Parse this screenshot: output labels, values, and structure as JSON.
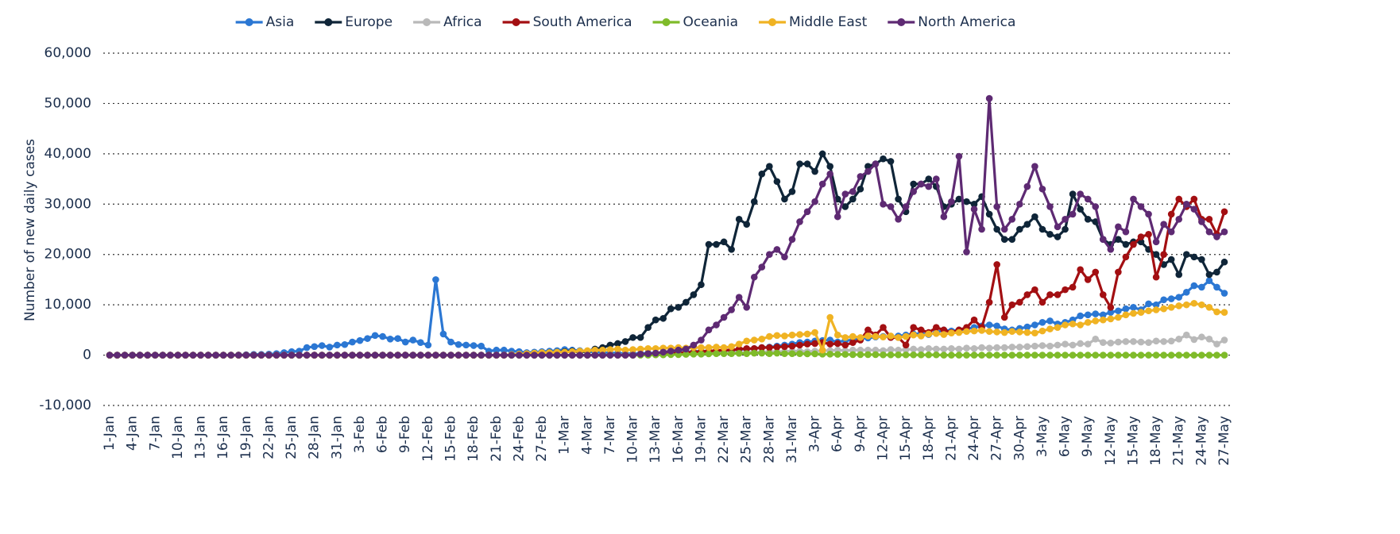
{
  "chart_data": {
    "type": "line",
    "ylabel": "Number of new daily cases",
    "categories": [
      "1-Jan",
      null,
      null,
      "4-Jan",
      null,
      null,
      "7-Jan",
      null,
      null,
      "10-Jan",
      null,
      null,
      "13-Jan",
      null,
      null,
      "16-Jan",
      null,
      null,
      "19-Jan",
      null,
      null,
      "22-Jan",
      null,
      null,
      "25-Jan",
      null,
      null,
      "28-Jan",
      null,
      null,
      "31-Jan",
      null,
      null,
      "3-Feb",
      null,
      null,
      "6-Feb",
      null,
      null,
      "9-Feb",
      null,
      null,
      "12-Feb",
      null,
      null,
      "15-Feb",
      null,
      null,
      "18-Feb",
      null,
      null,
      "21-Feb",
      null,
      null,
      "24-Feb",
      null,
      null,
      "27-Feb",
      null,
      null,
      "1-Mar",
      null,
      null,
      "4-Mar",
      null,
      null,
      "7-Mar",
      null,
      null,
      "10-Mar",
      null,
      null,
      "13-Mar",
      null,
      null,
      "16-Mar",
      null,
      null,
      "19-Mar",
      null,
      null,
      "22-Mar",
      null,
      null,
      "25-Mar",
      null,
      null,
      "28-Mar",
      null,
      null,
      "31-Mar",
      null,
      null,
      "3-Apr",
      null,
      null,
      "6-Apr",
      null,
      null,
      "9-Apr",
      null,
      null,
      "12-Apr",
      null,
      null,
      "15-Apr",
      null,
      null,
      "18-Apr",
      null,
      null,
      "21-Apr",
      null,
      null,
      "24-Apr",
      null,
      null,
      "27-Apr",
      null,
      null,
      "30-Apr",
      null,
      null,
      "3-May",
      null,
      null,
      "6-May",
      null,
      null,
      "9-May",
      null,
      null,
      "12-May",
      null,
      null,
      "15-May",
      null,
      null,
      "18-May",
      null,
      null,
      "21-May",
      null,
      null,
      "24-May",
      null,
      null,
      "27-May"
    ],
    "ylim": [
      -10000,
      60000
    ],
    "yticks": [
      {
        "value": -10000,
        "label": "-10,000"
      },
      0,
      {
        "value": 10000,
        "label": "10,000"
      },
      {
        "value": 20000,
        "label": "20,000"
      },
      {
        "value": 30000,
        "label": "30,000"
      },
      {
        "value": 40000,
        "label": "40,000"
      },
      {
        "value": 50000,
        "label": "50,000"
      },
      {
        "value": 60000,
        "label": "60,000"
      }
    ],
    "grid": true,
    "legend": "top",
    "series": [
      {
        "name": "Asia",
        "color": "#2b77d3",
        "values": [
          0,
          0,
          0,
          0,
          0,
          0,
          0,
          0,
          0,
          0,
          0,
          0,
          0,
          0,
          0,
          0,
          10,
          20,
          80,
          150,
          150,
          200,
          300,
          500,
          700,
          800,
          1500,
          1700,
          1900,
          1600,
          2000,
          2100,
          2600,
          2900,
          3300,
          3900,
          3700,
          3200,
          3300,
          2600,
          3000,
          2500,
          2000,
          15000,
          4200,
          2600,
          2100,
          2000,
          1900,
          1800,
          800,
          1000,
          1000,
          800,
          700,
          500,
          600,
          700,
          800,
          900,
          1100,
          1000,
          900,
          700,
          600,
          500,
          400,
          400,
          300,
          300,
          300,
          400,
          400,
          500,
          500,
          500,
          600,
          700,
          800,
          800,
          900,
          900,
          1000,
          1100,
          1200,
          1300,
          1500,
          1600,
          1800,
          2000,
          2200,
          2500,
          2600,
          2800,
          2900,
          3000,
          2600,
          2900,
          3000,
          3300,
          3400,
          3600,
          3700,
          3600,
          3800,
          4000,
          4200,
          4300,
          4100,
          4500,
          5000,
          4800,
          5000,
          5200,
          5500,
          5800,
          6000,
          5800,
          5200,
          5000,
          5300,
          5600,
          6000,
          6500,
          6800,
          6200,
          6500,
          7000,
          7800,
          8000,
          8200,
          8000,
          8500,
          8800,
          9200,
          9500,
          9000,
          10200,
          10000,
          11000,
          11200,
          11500,
          12500,
          13800,
          13500,
          14800,
          13500,
          12300
        ]
      },
      {
        "name": "Europe",
        "color": "#0f2538",
        "values": [
          0,
          0,
          0,
          0,
          0,
          0,
          0,
          0,
          0,
          0,
          0,
          0,
          0,
          0,
          0,
          0,
          0,
          0,
          0,
          0,
          0,
          0,
          0,
          0,
          0,
          0,
          0,
          0,
          0,
          0,
          0,
          0,
          0,
          0,
          0,
          0,
          0,
          0,
          0,
          0,
          0,
          0,
          0,
          0,
          0,
          0,
          0,
          0,
          0,
          0,
          0,
          0,
          0,
          50,
          100,
          100,
          200,
          300,
          500,
          600,
          700,
          800,
          600,
          800,
          1200,
          1500,
          2000,
          2300,
          2700,
          3500,
          3500,
          5500,
          7000,
          7300,
          9200,
          9500,
          10500,
          12000,
          14000,
          22000,
          22000,
          22500,
          21000,
          27000,
          26000,
          30500,
          36000,
          37500,
          34500,
          31000,
          32500,
          38000,
          38000,
          36500,
          40000,
          37500,
          31000,
          29500,
          31000,
          33000,
          37500,
          38000,
          39000,
          38500,
          31000,
          28500,
          34000,
          34000,
          35000,
          33500,
          29500,
          30000,
          31000,
          30500,
          30000,
          31500,
          28000,
          25000,
          23000,
          23000,
          25000,
          26000,
          27500,
          25000,
          24000,
          23500,
          25000,
          32000,
          29000,
          27000,
          26500,
          23000,
          22000,
          23000,
          22000,
          22500,
          22500,
          21000,
          20000,
          18000,
          19000,
          16000,
          20000,
          19500,
          19000,
          16000,
          16500,
          18500
        ]
      },
      {
        "name": "Africa",
        "color": "#b9b9b9",
        "values": [
          0,
          0,
          0,
          0,
          0,
          0,
          0,
          0,
          0,
          0,
          0,
          0,
          0,
          0,
          0,
          0,
          0,
          0,
          0,
          0,
          0,
          0,
          0,
          0,
          0,
          0,
          0,
          0,
          0,
          0,
          0,
          0,
          0,
          0,
          0,
          0,
          0,
          0,
          0,
          0,
          0,
          0,
          0,
          0,
          0,
          0,
          0,
          0,
          0,
          0,
          0,
          0,
          0,
          0,
          0,
          0,
          0,
          0,
          0,
          0,
          0,
          0,
          0,
          0,
          10,
          20,
          30,
          40,
          50,
          60,
          80,
          100,
          120,
          150,
          200,
          250,
          300,
          300,
          350,
          400,
          400,
          450,
          500,
          500,
          550,
          600,
          600,
          700,
          700,
          750,
          800,
          800,
          700,
          800,
          900,
          900,
          1000,
          900,
          1000,
          1000,
          1000,
          1000,
          900,
          1100,
          1000,
          1100,
          1200,
          1100,
          1300,
          1200,
          1200,
          1300,
          1200,
          1400,
          1300,
          1500,
          1400,
          1500,
          1500,
          1600,
          1600,
          1700,
          1800,
          1900,
          1800,
          2000,
          2200,
          2000,
          2300,
          2200,
          3200,
          2500,
          2400,
          2600,
          2700,
          2700,
          2600,
          2500,
          2800,
          2700,
          2800,
          3200,
          4000,
          3100,
          3600,
          3200,
          2200,
          3000
        ]
      },
      {
        "name": "South America",
        "color": "#a30f12",
        "values": [
          0,
          0,
          0,
          0,
          0,
          0,
          0,
          0,
          0,
          0,
          0,
          0,
          0,
          0,
          0,
          0,
          0,
          0,
          0,
          0,
          0,
          0,
          0,
          0,
          0,
          0,
          0,
          0,
          0,
          0,
          0,
          0,
          0,
          0,
          0,
          0,
          0,
          0,
          0,
          0,
          0,
          0,
          0,
          0,
          0,
          0,
          0,
          0,
          0,
          0,
          0,
          0,
          0,
          0,
          0,
          0,
          0,
          0,
          0,
          0,
          0,
          0,
          0,
          0,
          0,
          0,
          0,
          0,
          0,
          0,
          50,
          100,
          100,
          200,
          300,
          400,
          500,
          600,
          700,
          800,
          900,
          1000,
          1000,
          1200,
          1300,
          1300,
          1500,
          1500,
          1600,
          1700,
          1800,
          2000,
          2200,
          2300,
          2500,
          2200,
          2300,
          2000,
          2500,
          3000,
          5000,
          4000,
          5500,
          3500,
          3500,
          2000,
          5500,
          5000,
          4500,
          5500,
          5000,
          4500,
          5000,
          5500,
          7000,
          5500,
          10500,
          18000,
          7500,
          10000,
          10500,
          12000,
          13000,
          10500,
          12000,
          12000,
          13000,
          13500,
          17000,
          15000,
          16500,
          12000,
          9500,
          16500,
          19500,
          22000,
          23500,
          24000,
          15500,
          20000,
          28000,
          31000,
          29500,
          31000,
          27000,
          27000,
          24000,
          28500
        ]
      },
      {
        "name": "Oceania",
        "color": "#7fbb2a",
        "values": [
          0,
          0,
          0,
          0,
          0,
          0,
          0,
          0,
          0,
          0,
          0,
          0,
          0,
          0,
          0,
          0,
          0,
          0,
          0,
          0,
          0,
          0,
          0,
          0,
          0,
          0,
          0,
          0,
          0,
          0,
          0,
          0,
          0,
          0,
          0,
          0,
          0,
          0,
          0,
          0,
          0,
          0,
          0,
          0,
          0,
          0,
          0,
          0,
          0,
          0,
          0,
          0,
          0,
          0,
          0,
          0,
          0,
          0,
          0,
          0,
          0,
          0,
          0,
          0,
          0,
          0,
          0,
          0,
          0,
          0,
          0,
          0,
          50,
          50,
          100,
          100,
          150,
          200,
          200,
          250,
          300,
          300,
          300,
          350,
          300,
          400,
          400,
          300,
          400,
          300,
          300,
          300,
          250,
          250,
          200,
          200,
          150,
          150,
          100,
          100,
          100,
          100,
          50,
          50,
          50,
          50,
          50,
          50,
          50,
          50,
          0,
          0,
          0,
          0,
          0,
          0,
          0,
          0,
          0,
          0,
          0,
          0,
          0,
          0,
          0,
          0,
          0,
          0,
          0,
          0,
          0,
          0,
          0,
          0,
          0,
          0,
          0,
          0,
          0,
          0,
          0,
          0,
          0,
          0,
          0,
          0,
          0,
          0
        ]
      },
      {
        "name": "Middle East",
        "color": "#f0b323",
        "values": [
          0,
          0,
          0,
          0,
          0,
          0,
          0,
          0,
          0,
          0,
          0,
          0,
          0,
          0,
          0,
          0,
          0,
          0,
          0,
          0,
          0,
          0,
          0,
          0,
          0,
          0,
          0,
          0,
          0,
          0,
          0,
          0,
          0,
          0,
          0,
          0,
          0,
          0,
          0,
          0,
          0,
          0,
          0,
          0,
          0,
          0,
          0,
          0,
          0,
          0,
          0,
          0,
          0,
          100,
          200,
          300,
          400,
          500,
          500,
          600,
          600,
          700,
          800,
          900,
          1000,
          1000,
          1100,
          1200,
          1000,
          1100,
          1200,
          1300,
          1300,
          1400,
          1400,
          1500,
          1400,
          1500,
          1500,
          1500,
          1600,
          1500,
          1700,
          2200,
          2800,
          3000,
          3200,
          3700,
          3900,
          3800,
          4000,
          4100,
          4200,
          4500,
          1000,
          7500,
          4000,
          3500,
          3700,
          3500,
          3800,
          3700,
          3600,
          3800,
          3500,
          3700,
          4000,
          3800,
          4200,
          4300,
          4100,
          4400,
          4500,
          4700,
          4800,
          4900,
          4700,
          4600,
          4500,
          4700,
          4600,
          4500,
          4400,
          4800,
          5200,
          5500,
          6000,
          6200,
          6000,
          6500,
          6800,
          7000,
          7200,
          7500,
          8000,
          8300,
          8500,
          8800,
          9000,
          9200,
          9500,
          9800,
          10000,
          10300,
          10000,
          9500,
          8600,
          8500
        ]
      },
      {
        "name": "North America",
        "color": "#5e2a73",
        "values": [
          0,
          0,
          0,
          0,
          0,
          0,
          0,
          0,
          0,
          0,
          0,
          0,
          0,
          0,
          0,
          0,
          0,
          0,
          0,
          0,
          0,
          0,
          0,
          0,
          0,
          0,
          0,
          0,
          0,
          0,
          0,
          0,
          0,
          0,
          0,
          0,
          0,
          0,
          0,
          0,
          0,
          0,
          0,
          0,
          0,
          0,
          0,
          0,
          0,
          0,
          0,
          0,
          0,
          0,
          0,
          0,
          0,
          0,
          0,
          0,
          0,
          0,
          0,
          0,
          0,
          0,
          0,
          0,
          0,
          0,
          200,
          300,
          400,
          600,
          800,
          1000,
          1200,
          2000,
          3000,
          5000,
          6000,
          7500,
          9000,
          11500,
          9500,
          15500,
          17500,
          20000,
          21000,
          19500,
          23000,
          26500,
          28500,
          30500,
          34000,
          36000,
          27500,
          32000,
          32500,
          35500,
          36500,
          38000,
          30000,
          29500,
          27000,
          29500,
          32500,
          34000,
          33500,
          35000,
          27500,
          30500,
          39500,
          20500,
          29000,
          25000,
          51000,
          29500,
          25000,
          27000,
          30000,
          33500,
          37500,
          33000,
          29500,
          25500,
          27000,
          28000,
          32000,
          31000,
          29500,
          23000,
          21000,
          25500,
          24500,
          31000,
          29500,
          28000,
          22500,
          26000,
          24500,
          27000,
          30000,
          29000,
          26500,
          24500,
          23500,
          24500
        ]
      }
    ]
  }
}
